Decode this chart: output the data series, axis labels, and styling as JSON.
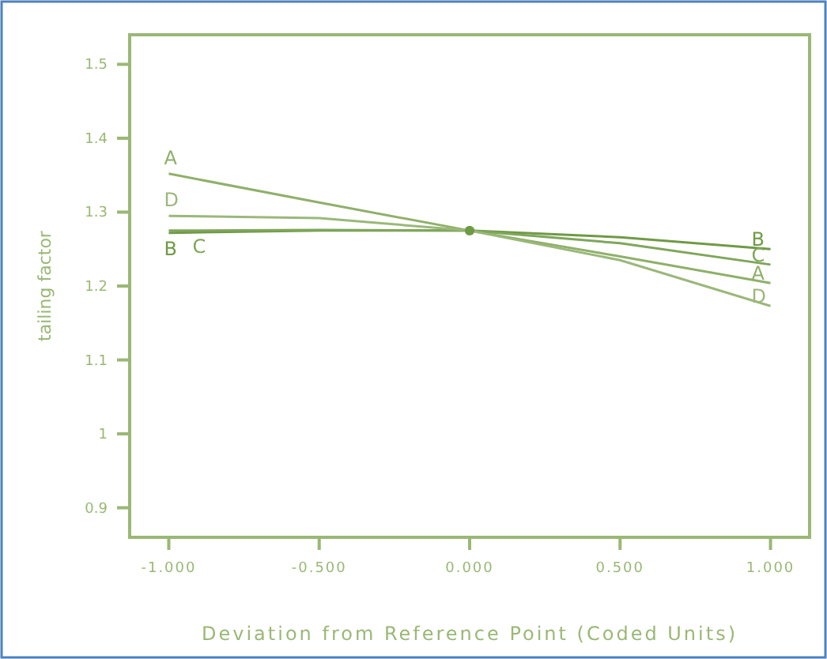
{
  "chart_data": {
    "type": "line",
    "xlabel": "Deviation from Reference Point (Coded Units)",
    "ylabel": "tailing factor",
    "xlim": [
      -1.13,
      1.13
    ],
    "xticks": [
      {
        "value": -1,
        "label": "-1.000"
      },
      {
        "value": -0.5,
        "label": "-0.500"
      },
      {
        "value": 0,
        "label": "0.000"
      },
      {
        "value": 0.5,
        "label": "0.500"
      },
      {
        "value": 1,
        "label": "1.000"
      }
    ],
    "ylim": [
      0.86,
      1.54
    ],
    "yticks": [
      0.9,
      1,
      1.1,
      1.2,
      1.3,
      1.4,
      1.5
    ],
    "x": [
      -1,
      -0.5,
      0,
      0.5,
      1
    ],
    "grid": false,
    "marker": "none",
    "line_style": "solid",
    "series": [
      {
        "name": "A",
        "color": "#8fb06a",
        "values": [
          1.352,
          1.313,
          1.275,
          1.24,
          1.204
        ]
      },
      {
        "name": "B",
        "color": "#6f9a45",
        "values": [
          1.272,
          1.275,
          1.275,
          1.266,
          1.25
        ]
      },
      {
        "name": "C",
        "color": "#7fa65a",
        "values": [
          1.275,
          1.276,
          1.275,
          1.258,
          1.229
        ]
      },
      {
        "name": "D",
        "color": "#9bb87a",
        "values": [
          1.295,
          1.292,
          1.275,
          1.235,
          1.173
        ]
      },
      {
        "type": "scatter",
        "color": "#6f9a45",
        "x": [
          0
        ],
        "values": [
          1.275
        ],
        "marker": "circle"
      }
    ]
  }
}
